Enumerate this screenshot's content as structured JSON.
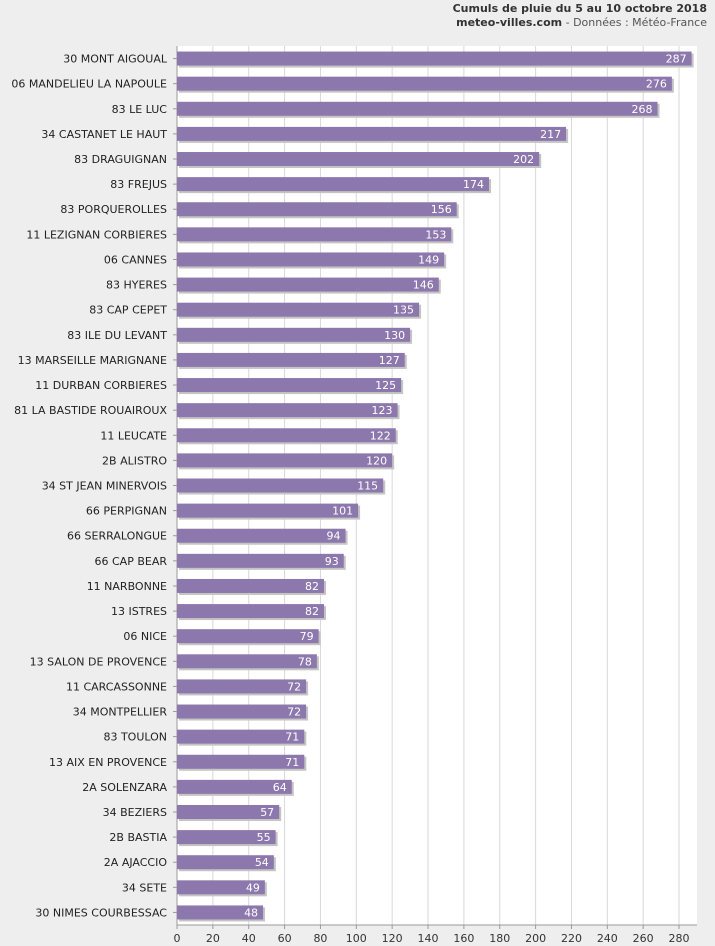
{
  "header": {
    "title": "Cumuls de pluie du 5 au 10 octobre 2018",
    "site": "meteo-villes.com",
    "source": " - Données : Météo-France"
  },
  "colors": {
    "bar": "#8c78ad",
    "bar_shadow": "#c4c4c4",
    "plot_bg": "#ffffff",
    "grid": "#d8d8d8",
    "page_bg": "#eeeeee"
  },
  "chart_data": {
    "type": "bar",
    "orientation": "horizontal",
    "categories": [
      "30 MONT AIGOUAL",
      "06 MANDELIEU LA NAPOULE",
      "83 LE LUC",
      "34 CASTANET LE HAUT",
      "83 DRAGUIGNAN",
      "83 FREJUS",
      "83 PORQUEROLLES",
      "11 LEZIGNAN CORBIERES",
      "06 CANNES",
      "83 HYERES",
      "83 CAP CEPET",
      "83 ILE DU LEVANT",
      "13 MARSEILLE MARIGNANE",
      "11 DURBAN CORBIERES",
      "81 LA BASTIDE ROUAIROUX",
      "11 LEUCATE",
      "2B ALISTRO",
      "34 ST JEAN MINERVOIS",
      "66 PERPIGNAN",
      "66 SERRALONGUE",
      "66 CAP BEAR",
      "11 NARBONNE",
      "13 ISTRES",
      "06 NICE",
      "13 SALON DE PROVENCE",
      "11 CARCASSONNE",
      "34 MONTPELLIER",
      "83 TOULON",
      "13 AIX EN PROVENCE",
      "2A SOLENZARA",
      "34 BEZIERS",
      "2B BASTIA",
      "2A AJACCIO",
      "34 SETE",
      "30 NIMES COURBESSAC"
    ],
    "values": [
      287,
      276,
      268,
      217,
      202,
      174,
      156,
      153,
      149,
      146,
      135,
      130,
      127,
      125,
      123,
      122,
      120,
      115,
      101,
      94,
      93,
      82,
      82,
      79,
      78,
      72,
      72,
      71,
      71,
      64,
      57,
      55,
      54,
      49,
      48
    ],
    "xlim": [
      0,
      290
    ],
    "xticks": [
      "0",
      "20",
      "40",
      "60",
      "80",
      "100",
      "120",
      "140",
      "160",
      "180",
      "200",
      "220",
      "240",
      "260",
      "280"
    ],
    "grid": true,
    "data_labels": true
  }
}
